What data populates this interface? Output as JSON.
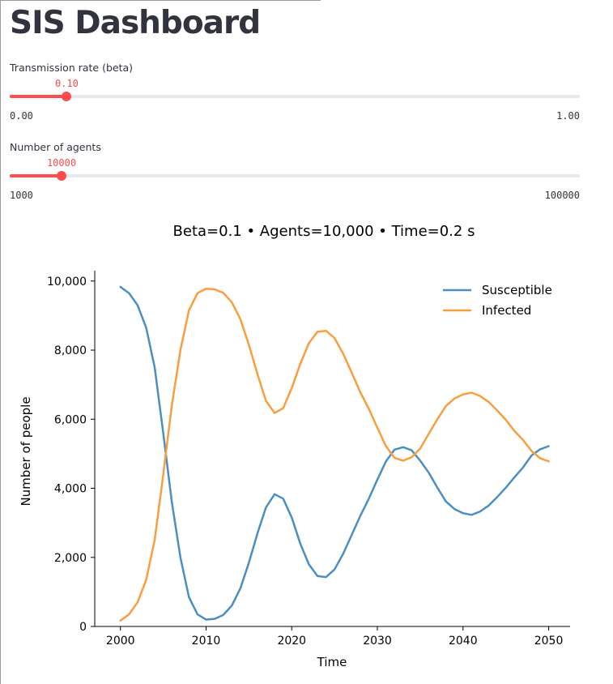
{
  "page": {
    "title": "SIS Dashboard"
  },
  "sliders": [
    {
      "label": "Transmission rate (beta)",
      "value": 0.1,
      "value_label": "0.10",
      "min": 0.0,
      "max": 1.0,
      "min_label": "0.00",
      "max_label": "1.00"
    },
    {
      "label": "Number of agents",
      "value": 10000,
      "value_label": "10000",
      "min": 1000,
      "max": 100000,
      "min_label": "1000",
      "max_label": "100000"
    }
  ],
  "colors": {
    "accent": "#ff4b4b",
    "track": "#e6e8ee",
    "susceptible": "#4a8ec2",
    "infected": "#f99e3f"
  },
  "chart_data": {
    "type": "line",
    "title": "Beta=0.1 • Agents=10,000 • Time=0.2 s",
    "xlabel": "Time",
    "ylabel": "Number of people",
    "xlim": [
      1997,
      2052.5
    ],
    "ylim": [
      0,
      10300
    ],
    "xticks": [
      2000,
      2010,
      2020,
      2030,
      2040,
      2050
    ],
    "xtick_labels": [
      "2000",
      "2010",
      "2020",
      "2030",
      "2040",
      "2050"
    ],
    "yticks": [
      0,
      2000,
      4000,
      6000,
      8000,
      10000
    ],
    "ytick_labels": [
      "0",
      "2,000",
      "4,000",
      "6,000",
      "8,000",
      "10,000"
    ],
    "legend_position": "top-right",
    "grid": false,
    "x": [
      2000,
      2001,
      2002,
      2003,
      2004,
      2005,
      2006,
      2007,
      2008,
      2009,
      2010,
      2011,
      2012,
      2013,
      2014,
      2015,
      2016,
      2017,
      2018,
      2019,
      2020,
      2021,
      2022,
      2023,
      2024,
      2025,
      2026,
      2027,
      2028,
      2029,
      2030,
      2031,
      2032,
      2033,
      2034,
      2035,
      2036,
      2037,
      2038,
      2039,
      2040,
      2041,
      2042,
      2043,
      2044,
      2045,
      2046,
      2047,
      2048,
      2049,
      2050
    ],
    "series": [
      {
        "name": "Susceptible",
        "values": [
          9830,
          9650,
          9300,
          8650,
          7500,
          5600,
          3600,
          2000,
          850,
          350,
          200,
          220,
          330,
          600,
          1100,
          1850,
          2700,
          3450,
          3830,
          3700,
          3150,
          2400,
          1800,
          1460,
          1430,
          1650,
          2100,
          2650,
          3200,
          3700,
          4250,
          4780,
          5120,
          5190,
          5100,
          4800,
          4450,
          4020,
          3620,
          3400,
          3280,
          3230,
          3330,
          3500,
          3750,
          4020,
          4320,
          4600,
          4950,
          5130,
          5220
        ]
      },
      {
        "name": "Infected",
        "values": [
          170,
          350,
          700,
          1350,
          2500,
          4400,
          6400,
          8000,
          9150,
          9650,
          9780,
          9760,
          9660,
          9390,
          8900,
          8150,
          7300,
          6530,
          6180,
          6320,
          6900,
          7600,
          8200,
          8530,
          8560,
          8350,
          7900,
          7350,
          6780,
          6300,
          5750,
          5220,
          4880,
          4800,
          4900,
          5150,
          5580,
          6000,
          6380,
          6600,
          6720,
          6770,
          6670,
          6500,
          6250,
          5980,
          5660,
          5400,
          5080,
          4870,
          4780
        ]
      }
    ]
  }
}
